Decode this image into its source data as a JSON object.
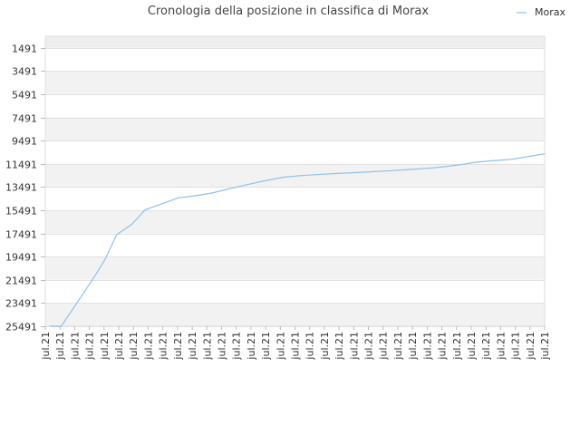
{
  "chart_data": {
    "type": "line",
    "title": "Cronologia della posizione in classifica di Morax",
    "xlabel": "",
    "ylabel": "",
    "y_inverted": true,
    "ylim": [
      25491,
      491
    ],
    "y_ticks": [
      1491,
      3491,
      5491,
      7491,
      9491,
      11491,
      13491,
      15491,
      17491,
      19491,
      21491,
      23491,
      25491
    ],
    "x_tick_labels": [
      "jul.21",
      "jul.21",
      "jul.21",
      "jul.21",
      "jul.21",
      "jul.21",
      "jul.21",
      "jul.21",
      "jul.21",
      "jul.21",
      "jul.21",
      "jul.21",
      "jul.21",
      "jul.21",
      "jul.21",
      "jul.21",
      "jul.21",
      "jul.21",
      "jul.21",
      "jul.21",
      "jul.21",
      "jul.21",
      "jul.21",
      "jul.21",
      "jul.21",
      "jul.21",
      "jul.21",
      "jul.21",
      "jul.21",
      "jul.21",
      "jul.21",
      "jul.21",
      "jul.21",
      "jul.21",
      "jul.21"
    ],
    "grid": true,
    "legend": "top-right",
    "colors": {
      "series": "#8fc1ea",
      "band_dark": "#f2f2f2",
      "band_light": "#ffffff",
      "axis": "#dddddd"
    },
    "series": [
      {
        "name": "Morax",
        "x": [
          0.8,
          2.4,
          7,
          9,
          10.7,
          13,
          15,
          20,
          22,
          25,
          28.2,
          32,
          35.8,
          38.5,
          40.7,
          44,
          47.5,
          52,
          55,
          57.5,
          60,
          62.4,
          64.5,
          67,
          69,
          70.5,
          73,
          75
        ],
        "values": [
          25491,
          25491,
          21560,
          19700,
          17610,
          16700,
          15450,
          14420,
          14290,
          14010,
          13560,
          13060,
          12640,
          12500,
          12420,
          12320,
          12220,
          12080,
          11970,
          11870,
          11730,
          11560,
          11360,
          11230,
          11150,
          11060,
          10810,
          10620
        ]
      }
    ]
  }
}
